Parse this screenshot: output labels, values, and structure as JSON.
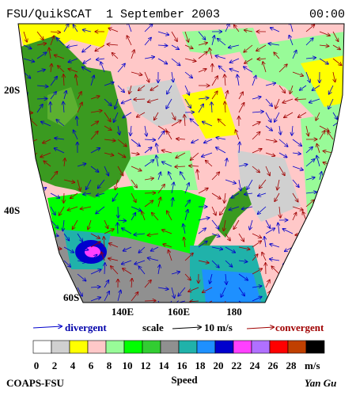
{
  "header": {
    "title": "FSU/QuikSCAT  1 September 2003",
    "time": "00:00"
  },
  "map": {
    "lat_labels": [
      "20S",
      "40S",
      "60S"
    ],
    "lon_labels": [
      "140E",
      "160E",
      "180"
    ]
  },
  "legend": {
    "divergent": "divergent",
    "scale": "scale",
    "scale_value": "10 m/s",
    "convergent": "convergent"
  },
  "colorbar": {
    "colors": [
      "#ffffff",
      "#d0d0d0",
      "#ffff00",
      "#ffc8c8",
      "#98fb98",
      "#00ff00",
      "#32cd32",
      "#909090",
      "#20b2aa",
      "#1e90ff",
      "#0000cd",
      "#ff40ff",
      "#b070ff",
      "#ff0000",
      "#c04000",
      "#000000"
    ],
    "labels": [
      0,
      2,
      4,
      6,
      8,
      10,
      12,
      14,
      16,
      18,
      20,
      22,
      24,
      26,
      28
    ],
    "unit": "m/s",
    "title": "Speed"
  },
  "footer": {
    "left": "COAPS-FSU",
    "right": "Yan Gu"
  }
}
